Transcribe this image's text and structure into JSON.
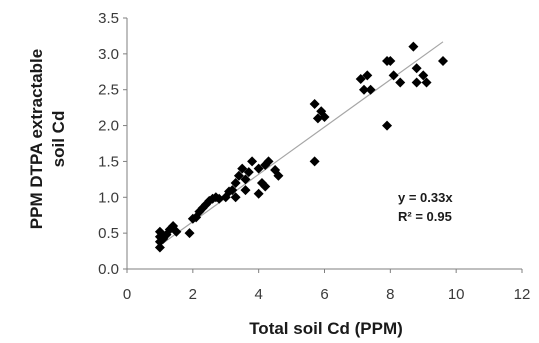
{
  "chart_data": {
    "type": "scatter",
    "title": "",
    "xlabel": "Total soil Cd (PPM)",
    "ylabel_lines": [
      "PPM DTPA extractable",
      "soil Cd"
    ],
    "xlim": [
      0,
      12
    ],
    "ylim": [
      0,
      3.5
    ],
    "x_ticks": [
      "0",
      "2",
      "4",
      "6",
      "8",
      "10",
      "12"
    ],
    "y_ticks": [
      "0.0",
      "0.5",
      "1.0",
      "1.5",
      "2.0",
      "2.5",
      "3.0",
      "3.5"
    ],
    "grid": false,
    "legend": "none",
    "marker": "diamond",
    "marker_color": "#000000",
    "trendline": {
      "slope": 0.33,
      "x_range": [
        1.0,
        9.6
      ],
      "color": "#a6a6a6"
    },
    "annotations": [
      "y = 0.33x",
      "R² = 0.95"
    ],
    "points": [
      [
        1.0,
        0.3
      ],
      [
        1.0,
        0.38
      ],
      [
        1.0,
        0.45
      ],
      [
        1.0,
        0.52
      ],
      [
        1.1,
        0.42
      ],
      [
        1.2,
        0.48
      ],
      [
        1.3,
        0.55
      ],
      [
        1.4,
        0.6
      ],
      [
        1.5,
        0.52
      ],
      [
        1.9,
        0.5
      ],
      [
        2.0,
        0.7
      ],
      [
        2.1,
        0.72
      ],
      [
        2.2,
        0.8
      ],
      [
        2.3,
        0.85
      ],
      [
        2.4,
        0.9
      ],
      [
        2.5,
        0.95
      ],
      [
        2.6,
        0.98
      ],
      [
        2.7,
        1.0
      ],
      [
        2.8,
        0.98
      ],
      [
        3.0,
        1.0
      ],
      [
        3.1,
        1.08
      ],
      [
        3.2,
        1.1
      ],
      [
        3.3,
        1.0
      ],
      [
        3.3,
        1.2
      ],
      [
        3.4,
        1.3
      ],
      [
        3.5,
        1.4
      ],
      [
        3.6,
        1.25
      ],
      [
        3.6,
        1.1
      ],
      [
        3.7,
        1.35
      ],
      [
        3.8,
        1.5
      ],
      [
        4.0,
        1.4
      ],
      [
        4.0,
        1.05
      ],
      [
        4.1,
        1.2
      ],
      [
        4.2,
        1.15
      ],
      [
        4.2,
        1.45
      ],
      [
        4.3,
        1.5
      ],
      [
        4.5,
        1.38
      ],
      [
        4.6,
        1.3
      ],
      [
        5.7,
        2.3
      ],
      [
        5.7,
        1.5
      ],
      [
        5.8,
        2.1
      ],
      [
        5.9,
        2.2
      ],
      [
        6.0,
        2.12
      ],
      [
        7.1,
        2.65
      ],
      [
        7.2,
        2.5
      ],
      [
        7.3,
        2.7
      ],
      [
        7.4,
        2.5
      ],
      [
        7.9,
        2.0
      ],
      [
        7.9,
        2.9
      ],
      [
        8.0,
        2.9
      ],
      [
        8.1,
        2.7
      ],
      [
        8.3,
        2.6
      ],
      [
        8.7,
        3.1
      ],
      [
        8.8,
        2.8
      ],
      [
        8.8,
        2.6
      ],
      [
        9.0,
        2.7
      ],
      [
        9.1,
        2.6
      ],
      [
        9.6,
        2.9
      ]
    ]
  }
}
